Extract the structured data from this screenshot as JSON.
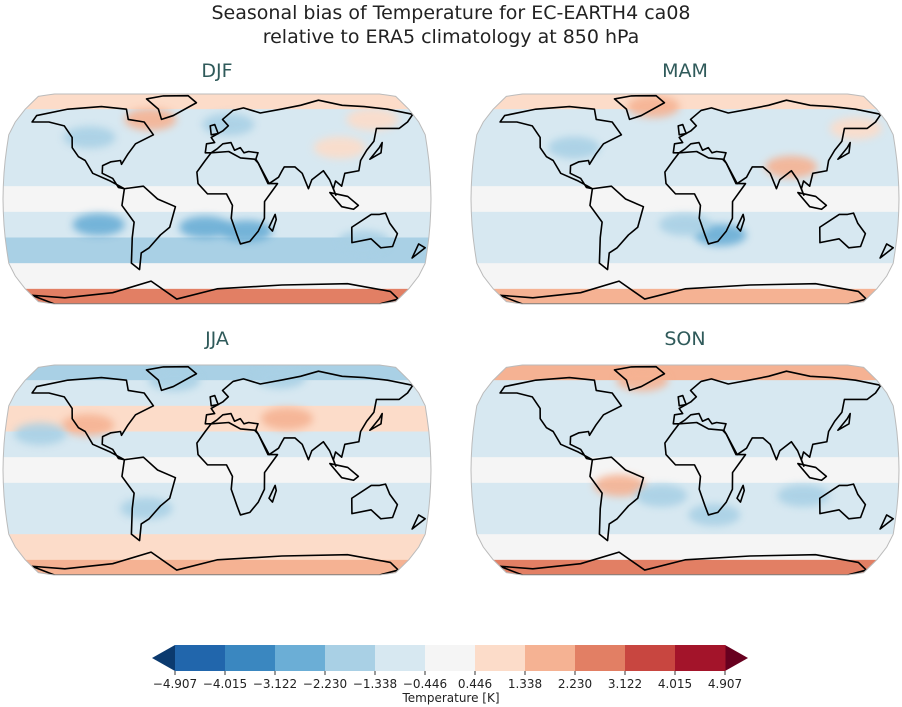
{
  "title": {
    "line1": "Seasonal bias of Temperature for EC-EARTH4 ca08",
    "line2": "relative to ERA5 climatology at 850 hPa"
  },
  "chart_data": {
    "type": "heatmap",
    "projection": "Robinson",
    "central_longitude": 0,
    "colorbar": {
      "label": "Temperature [K]",
      "ticks": [
        "−4.907",
        "−4.015",
        "−3.122",
        "−2.230",
        "−1.338",
        "−0.446",
        "0.446",
        "1.338",
        "2.230",
        "3.122",
        "4.015",
        "4.907"
      ],
      "tick_values": [
        -4.907,
        -4.015,
        -3.122,
        -2.23,
        -1.338,
        -0.446,
        0.446,
        1.338,
        2.23,
        3.122,
        4.015,
        4.907
      ],
      "colors": [
        "#2166ac",
        "#3a87c0",
        "#6baed6",
        "#a9d0e5",
        "#d7e8f1",
        "#f5f5f5",
        "#fcdcc9",
        "#f5b293",
        "#e27f64",
        "#c84640",
        "#a3142a"
      ],
      "extend_low_color": "#0b3a6e",
      "extend_high_color": "#67001f",
      "extend": "both"
    },
    "zonal_band_latitudes": [
      90,
      70,
      50,
      30,
      10,
      -10,
      -30,
      -50,
      -70,
      -90
    ],
    "panels": [
      {
        "season": "DJF",
        "zonal_bias": [
          0.5,
          -1.0,
          -0.7,
          -0.9,
          -0.2,
          -0.9,
          -1.5,
          -0.2,
          2.6
        ],
        "regional_anomalies": [
          {
            "lon": -60,
            "lat": 62,
            "value": 1.8
          },
          {
            "lon": 105,
            "lat": 40,
            "value": 1.0
          },
          {
            "lon": 140,
            "lat": 62,
            "value": 1.0
          },
          {
            "lon": -110,
            "lat": 48,
            "value": -2.0
          },
          {
            "lon": 10,
            "lat": 58,
            "value": -2.0
          },
          {
            "lon": -100,
            "lat": -20,
            "value": -2.5
          },
          {
            "lon": -10,
            "lat": -22,
            "value": -2.5
          },
          {
            "lon": 25,
            "lat": -25,
            "value": -2.5
          },
          {
            "lon": 125,
            "lat": -33,
            "value": -2.0
          }
        ]
      },
      {
        "season": "MAM",
        "zonal_bias": [
          1.2,
          -0.8,
          -0.8,
          -0.8,
          -0.2,
          -0.6,
          -1.0,
          -0.2,
          1.8
        ],
        "regional_anomalies": [
          {
            "lon": -30,
            "lat": 72,
            "value": 2.2
          },
          {
            "lon": 90,
            "lat": 25,
            "value": 1.8
          },
          {
            "lon": 150,
            "lat": 55,
            "value": 1.2
          },
          {
            "lon": -95,
            "lat": 40,
            "value": -2.0
          },
          {
            "lon": 30,
            "lat": -28,
            "value": -2.5
          },
          {
            "lon": 0,
            "lat": -20,
            "value": -1.8
          }
        ]
      },
      {
        "season": "JJA",
        "zonal_bias": [
          -1.5,
          -0.6,
          0.6,
          -0.7,
          -0.2,
          -0.6,
          -0.9,
          0.6,
          1.5
        ],
        "regional_anomalies": [
          {
            "lon": -40,
            "lat": 70,
            "value": -2.0
          },
          {
            "lon": 60,
            "lat": 72,
            "value": -2.0
          },
          {
            "lon": -110,
            "lat": 35,
            "value": 1.8
          },
          {
            "lon": 60,
            "lat": 40,
            "value": 1.5
          },
          {
            "lon": -150,
            "lat": 28,
            "value": -2.0
          },
          {
            "lon": -60,
            "lat": -30,
            "value": -1.8
          }
        ]
      },
      {
        "season": "SON",
        "zonal_bias": [
          1.5,
          -0.6,
          -0.5,
          -0.8,
          -0.2,
          -0.7,
          -1.0,
          -0.2,
          2.3
        ],
        "regional_anomalies": [
          {
            "lon": -40,
            "lat": 70,
            "value": 2.2
          },
          {
            "lon": -55,
            "lat": -12,
            "value": 1.5
          },
          {
            "lon": -20,
            "lat": -20,
            "value": -2.2
          },
          {
            "lon": 25,
            "lat": -35,
            "value": -1.8
          },
          {
            "lon": 100,
            "lat": -20,
            "value": -1.6
          }
        ]
      }
    ]
  }
}
